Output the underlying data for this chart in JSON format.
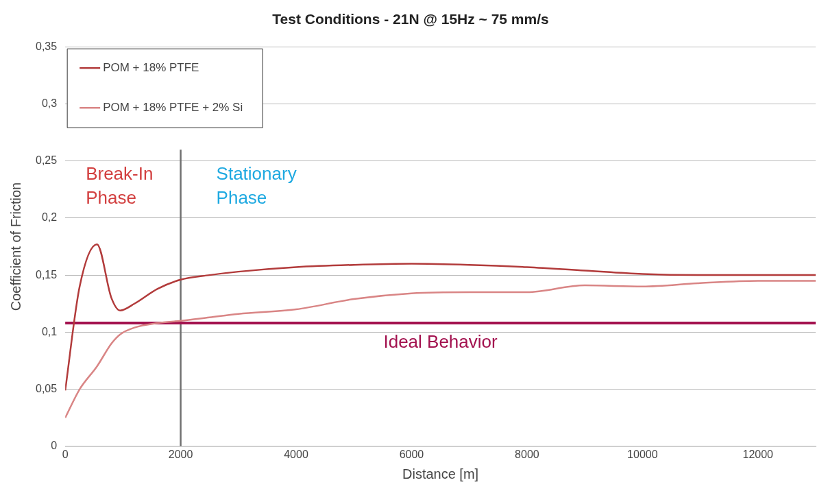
{
  "chart_data": {
    "type": "line",
    "title": "Test Conditions - 21N @ 15Hz ~ 75 mm/s",
    "xlabel": "Distance [m]",
    "ylabel": "Coefficient of Friction",
    "x": [
      0,
      250,
      550,
      800,
      950,
      1200,
      1600,
      2000,
      2500,
      3000,
      4000,
      5000,
      6000,
      7000,
      8000,
      9000,
      10000,
      11000,
      12000,
      13000
    ],
    "series": [
      {
        "name": "POM + 18% PTFE",
        "color": "#b23b3b",
        "values": [
          0.049,
          0.14,
          0.177,
          0.13,
          0.119,
          0.125,
          0.138,
          0.146,
          0.15,
          0.153,
          0.157,
          0.159,
          0.16,
          0.159,
          0.157,
          0.154,
          0.151,
          0.15,
          0.15,
          0.15
        ]
      },
      {
        "name": "POM + 18% PTFE + 2% Si",
        "color": "#d98585",
        "values": [
          0.025,
          0.05,
          0.07,
          0.09,
          0.098,
          0.104,
          0.108,
          0.11,
          0.113,
          0.116,
          0.12,
          0.129,
          0.134,
          0.135,
          0.135,
          0.141,
          0.14,
          0.143,
          0.145,
          0.145
        ]
      }
    ],
    "xlim": [
      0,
      13000
    ],
    "xticks": [
      0,
      2000,
      4000,
      6000,
      8000,
      10000,
      12000
    ],
    "ylim": [
      0,
      0.35
    ],
    "yticks": [
      {
        "value": 0,
        "label": "0"
      },
      {
        "value": 0.05,
        "label": "0,05"
      },
      {
        "value": 0.1,
        "label": "0,1"
      },
      {
        "value": 0.15,
        "label": "0,15"
      },
      {
        "value": 0.2,
        "label": "0,2"
      },
      {
        "value": 0.25,
        "label": "0,25"
      },
      {
        "value": 0.3,
        "label": "0,3"
      },
      {
        "value": 0.35,
        "label": "0,35"
      }
    ],
    "grid": "y",
    "legend": "top left",
    "marker": "none",
    "line_style": "solid",
    "ref_lines": [
      {
        "axis": "x",
        "value": 2000,
        "color": "#707070"
      },
      {
        "axis": "y",
        "value": 0.108,
        "label": "Ideal Behavior",
        "color": "#a3124f"
      }
    ],
    "annotations": [
      "Break-In Phase",
      "Stationary Phase"
    ]
  }
}
